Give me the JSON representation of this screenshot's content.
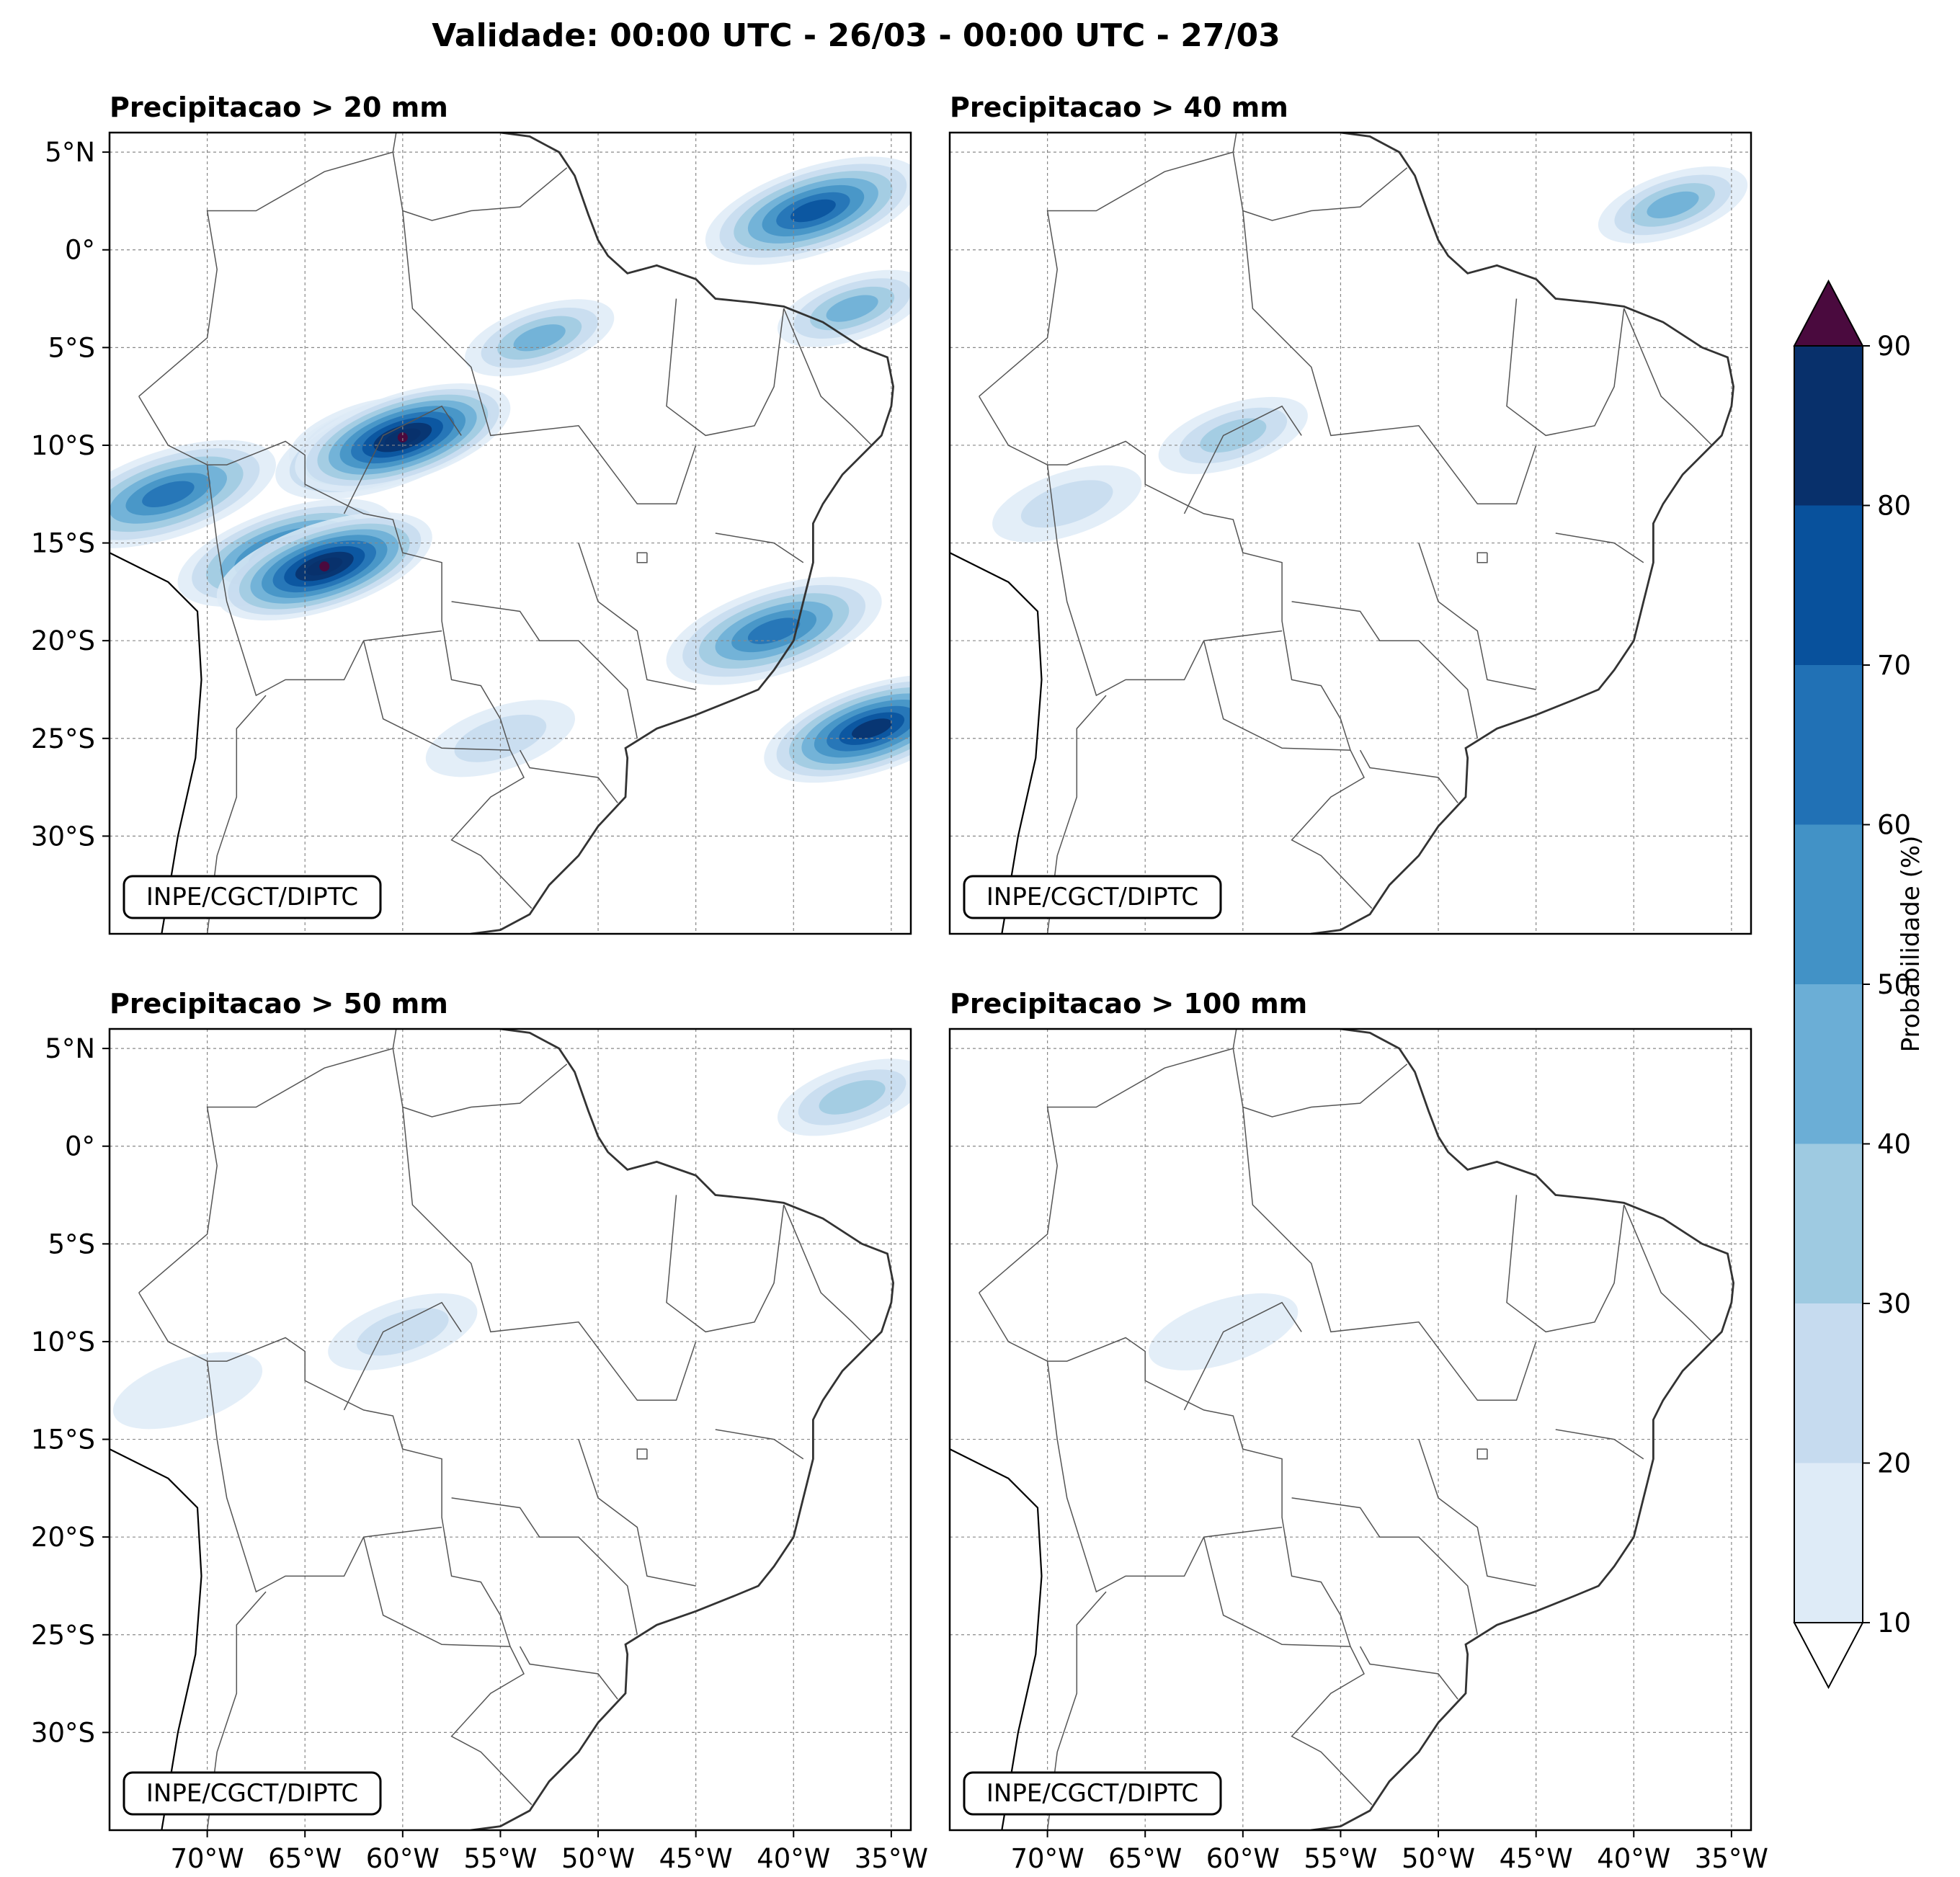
{
  "title": "Validade: 00:00 UTC - 26/03 - 00:00 UTC - 27/03",
  "panels": [
    {
      "title": "Precipitacao > 20 mm",
      "credit": "INPE/CGCT/DIPTC",
      "threshold_mm": 20
    },
    {
      "title": "Precipitacao > 40 mm",
      "credit": "INPE/CGCT/DIPTC",
      "threshold_mm": 40
    },
    {
      "title": "Precipitacao > 50 mm",
      "credit": "INPE/CGCT/DIPTC",
      "threshold_mm": 50
    },
    {
      "title": "Precipitacao > 100 mm",
      "credit": "INPE/CGCT/DIPTC",
      "threshold_mm": 100
    }
  ],
  "lat_ticks": [
    "5°N",
    "0°",
    "5°S",
    "10°S",
    "15°S",
    "20°S",
    "25°S",
    "30°S"
  ],
  "lon_ticks": [
    "70°W",
    "65°W",
    "60°W",
    "55°W",
    "50°W",
    "45°W",
    "40°W",
    "35°W"
  ],
  "map_extent": {
    "lon": [
      -75,
      -34
    ],
    "lat": [
      -35,
      6
    ]
  },
  "colorbar": {
    "label": "Probabilidade (%)",
    "ticks": [
      "10",
      "20",
      "30",
      "40",
      "50",
      "60",
      "70",
      "80",
      "90"
    ],
    "levels": [
      10,
      20,
      30,
      40,
      50,
      60,
      70,
      80,
      90
    ],
    "colors": [
      "#deebf7",
      "#c6dbef",
      "#9ecae1",
      "#6baed6",
      "#4292c6",
      "#2171b5",
      "#08519c",
      "#08306b"
    ],
    "over_color": "#4a0a3e",
    "under_color": "#ffffff"
  },
  "precip_areas": [
    [
      {
        "lon": -62,
        "lat": -9.5,
        "level": 4,
        "name": "central-core"
      },
      {
        "lon": -61,
        "lat": -10,
        "level": 6,
        "name": "central-max"
      },
      {
        "lon": -60,
        "lat": -9.6,
        "level": 8,
        "name": "central-peak"
      },
      {
        "lon": -72,
        "lat": -12.5,
        "level": 5,
        "name": "west-band"
      },
      {
        "lon": -66,
        "lat": -15.5,
        "level": 6,
        "name": "bolivia-band"
      },
      {
        "lon": -64,
        "lat": -16.2,
        "level": 8,
        "name": "bolivia-peak"
      },
      {
        "lon": -53,
        "lat": -4.5,
        "level": 3,
        "name": "amazon-band"
      },
      {
        "lon": -39,
        "lat": 2,
        "level": 6,
        "name": "atlantic-band"
      },
      {
        "lon": -37,
        "lat": -3,
        "level": 3,
        "name": "ne-coast"
      },
      {
        "lon": -41,
        "lat": -19.5,
        "level": 5,
        "name": "southeast"
      },
      {
        "lon": -36,
        "lat": -24.5,
        "level": 7,
        "name": "offshore-south"
      },
      {
        "lon": -55,
        "lat": -25,
        "level": 1,
        "name": "parana"
      }
    ],
    [
      {
        "lon": -60.5,
        "lat": -9.5,
        "level": 2,
        "name": "central-core"
      },
      {
        "lon": -38,
        "lat": 2.3,
        "level": 3,
        "name": "atlantic-band"
      },
      {
        "lon": -69,
        "lat": -13,
        "level": 1,
        "name": "west-patch"
      }
    ],
    [
      {
        "lon": -60,
        "lat": -9.5,
        "level": 1,
        "name": "central-core"
      },
      {
        "lon": -37,
        "lat": 2.5,
        "level": 2,
        "name": "atlantic-band"
      },
      {
        "lon": -71,
        "lat": -12.5,
        "level": 0,
        "name": "west-patch"
      }
    ],
    [
      {
        "lon": -61,
        "lat": -9.5,
        "level": 0,
        "name": "central-trace"
      }
    ]
  ]
}
